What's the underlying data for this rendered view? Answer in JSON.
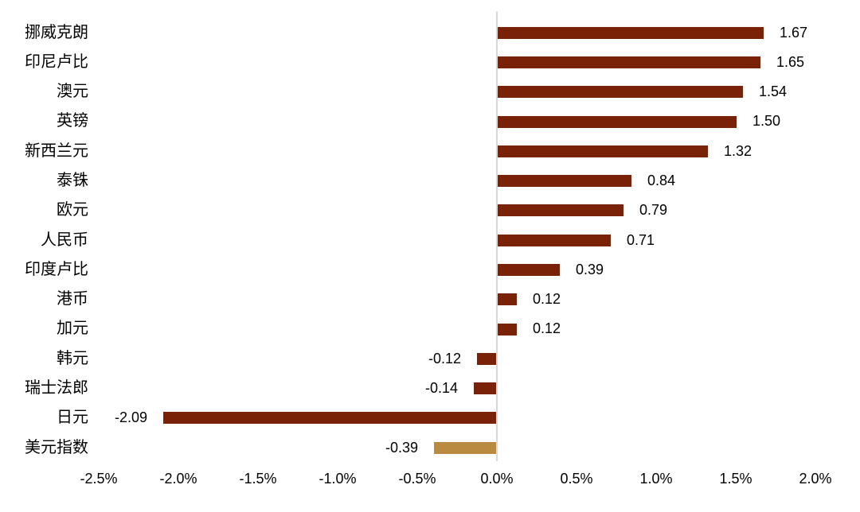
{
  "chart_data": {
    "type": "bar",
    "orientation": "horizontal",
    "title": "",
    "xlabel": "",
    "ylabel": "",
    "categories": [
      "挪威克朗",
      "印尼卢比",
      "澳元",
      "英镑",
      "新西兰元",
      "泰铢",
      "欧元",
      "人民币",
      "印度卢比",
      "港币",
      "加元",
      "韩元",
      "瑞士法郎",
      "日元",
      "美元指数"
    ],
    "values": [
      1.67,
      1.65,
      1.54,
      1.5,
      1.32,
      0.84,
      0.79,
      0.71,
      0.39,
      0.12,
      0.12,
      -0.12,
      -0.14,
      -2.09,
      -0.39
    ],
    "value_labels": [
      "1.67",
      "1.65",
      "1.54",
      "1.50",
      "1.32",
      "0.84",
      "0.79",
      "0.71",
      "0.39",
      "0.12",
      "0.12",
      "-0.12",
      "-0.14",
      "-2.09",
      "-0.39"
    ],
    "highlight_category": "美元指数",
    "x_tick_labels": [
      "-2.5%",
      "-2.0%",
      "-1.5%",
      "-1.0%",
      "-0.5%",
      "0.0%",
      "0.5%",
      "1.0%",
      "1.5%",
      "2.0%"
    ],
    "xlim": [
      -2.5,
      2.0
    ],
    "grid": "off",
    "legend": "none",
    "colors": {
      "bar": "#7A2208",
      "highlight_bar": "#B98A40",
      "axis_line": "#D9D9D9",
      "text": "#000000",
      "background": "#FFFFFF"
    }
  }
}
